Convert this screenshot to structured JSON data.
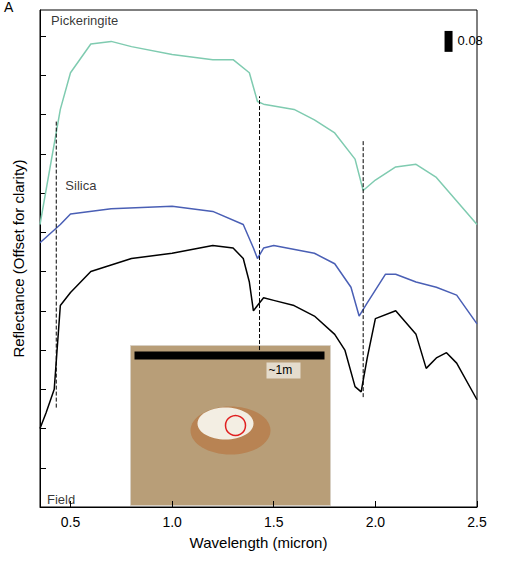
{
  "chart_data": {
    "type": "line",
    "panel": "A",
    "x_label": "Wavelength (micron)",
    "y_label": "Reflectance (Offset for clarity)",
    "xlim": [
      0.35,
      2.5
    ],
    "xticks": [
      0.5,
      {
        "value": 1,
        "label": "1.0"
      },
      1.5,
      {
        "value": 2,
        "label": "2.0"
      },
      2.5
    ],
    "ylim": [
      0,
      1.9
    ],
    "yticks": [
      0,
      0.15,
      0.3,
      0.45,
      0.6,
      0.75,
      0.9,
      1.05,
      1.2,
      1.35,
      1.5,
      1.65,
      1.8
    ],
    "tick_labels": "x",
    "grid": false,
    "series": [
      {
        "name": "Pickeringite",
        "color": "#7fcbb0",
        "x": [
          0.35,
          0.4,
          0.45,
          0.5,
          0.6,
          0.7,
          0.8,
          1.0,
          1.2,
          1.3,
          1.38,
          1.42,
          1.45,
          1.6,
          1.7,
          1.8,
          1.9,
          1.94,
          2.0,
          2.1,
          2.2,
          2.3,
          2.4,
          2.5
        ],
        "values": [
          1.08,
          1.3,
          1.52,
          1.66,
          1.77,
          1.78,
          1.76,
          1.73,
          1.71,
          1.71,
          1.66,
          1.55,
          1.54,
          1.52,
          1.48,
          1.43,
          1.33,
          1.21,
          1.25,
          1.3,
          1.31,
          1.26,
          1.17,
          1.08
        ]
      },
      {
        "name": "Silica",
        "color": "#4a5fb5",
        "x": [
          0.35,
          0.45,
          0.5,
          0.7,
          1.0,
          1.2,
          1.35,
          1.4,
          1.42,
          1.45,
          1.5,
          1.7,
          1.8,
          1.88,
          1.92,
          1.96,
          2.05,
          2.1,
          2.2,
          2.3,
          2.4,
          2.5
        ],
        "values": [
          1.01,
          1.08,
          1.12,
          1.14,
          1.15,
          1.13,
          1.08,
          0.99,
          0.95,
          0.99,
          1.0,
          0.97,
          0.93,
          0.84,
          0.73,
          0.78,
          0.89,
          0.89,
          0.86,
          0.84,
          0.81,
          0.7
        ]
      },
      {
        "name": "Field",
        "color": "#000000",
        "x": [
          0.35,
          0.38,
          0.42,
          0.45,
          0.5,
          0.6,
          0.8,
          1.0,
          1.2,
          1.3,
          1.35,
          1.38,
          1.4,
          1.42,
          1.45,
          1.5,
          1.6,
          1.7,
          1.8,
          1.85,
          1.9,
          1.93,
          1.96,
          2.0,
          2.1,
          2.2,
          2.25,
          2.3,
          2.35,
          2.4,
          2.5
        ],
        "values": [
          0.3,
          0.36,
          0.45,
          0.77,
          0.82,
          0.9,
          0.95,
          0.97,
          1.0,
          0.99,
          0.95,
          0.86,
          0.75,
          0.77,
          0.8,
          0.79,
          0.77,
          0.73,
          0.66,
          0.6,
          0.46,
          0.44,
          0.57,
          0.72,
          0.75,
          0.66,
          0.53,
          0.57,
          0.59,
          0.55,
          0.41
        ]
      }
    ],
    "vlines": [
      {
        "x": 0.43,
        "y": [
          0.38,
          1.48
        ]
      },
      {
        "x": 1.43,
        "y": [
          0.6,
          1.57
        ]
      },
      {
        "x": 1.94,
        "y": [
          0.42,
          1.4
        ]
      }
    ],
    "scale_bar": {
      "value": 0.08
    },
    "inset_label": "~1m"
  }
}
